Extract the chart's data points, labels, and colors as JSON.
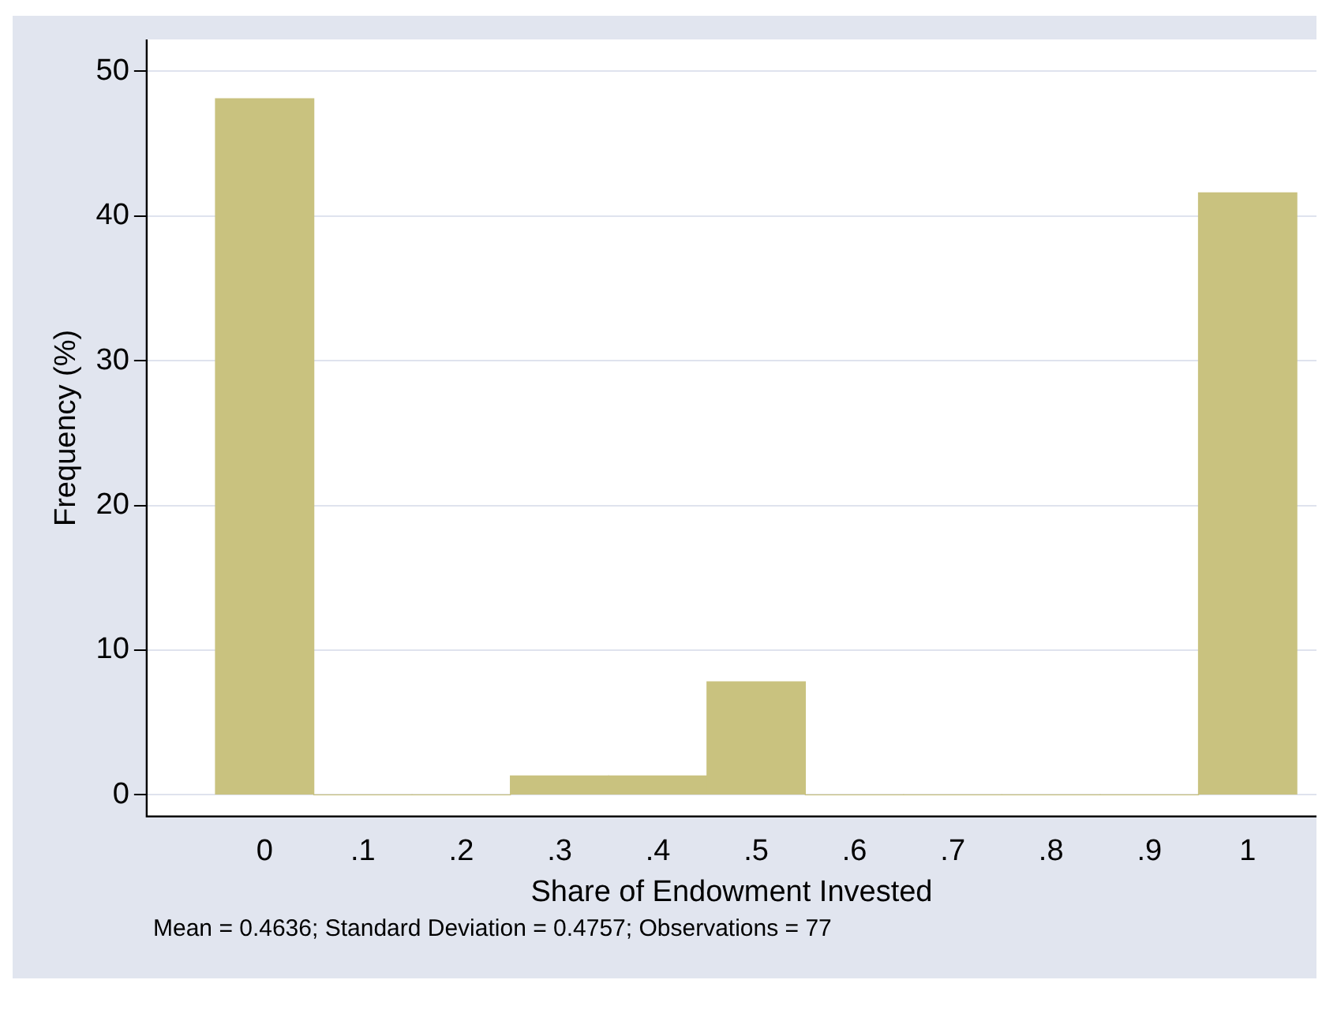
{
  "chart_data": {
    "type": "histogram",
    "xlabel": "Share of Endowment Invested",
    "ylabel": "Frequency (%)",
    "bins": [
      -0.05,
      0.05,
      0.15,
      0.25,
      0.35,
      0.45,
      0.55,
      0.65,
      0.75,
      0.85,
      0.95,
      1.05
    ],
    "values": [
      48.1,
      0,
      0,
      1.3,
      1.3,
      7.8,
      0,
      0,
      0,
      0,
      41.6
    ],
    "color": "#c9c27f",
    "xlim": [
      -0.12,
      1.07
    ],
    "xticks": [
      0,
      {
        "value": 0.1,
        "label": ".1"
      },
      {
        "value": 0.2,
        "label": ".2"
      },
      {
        "value": 0.3,
        "label": ".3"
      },
      {
        "value": 0.4,
        "label": ".4"
      },
      {
        "value": 0.5,
        "label": ".5"
      },
      {
        "value": 0.6,
        "label": ".6"
      },
      {
        "value": 0.7,
        "label": ".7"
      },
      {
        "value": 0.8,
        "label": ".8"
      },
      {
        "value": 0.9,
        "label": ".9"
      },
      1
    ],
    "ylim": [
      -1.5,
      52.2
    ],
    "yticks": [
      0,
      10,
      20,
      30,
      40,
      50
    ],
    "grid": "y",
    "annotations": [
      "Mean = 0.4636; Standard Deviation = 0.4757; Observations = 77"
    ]
  }
}
